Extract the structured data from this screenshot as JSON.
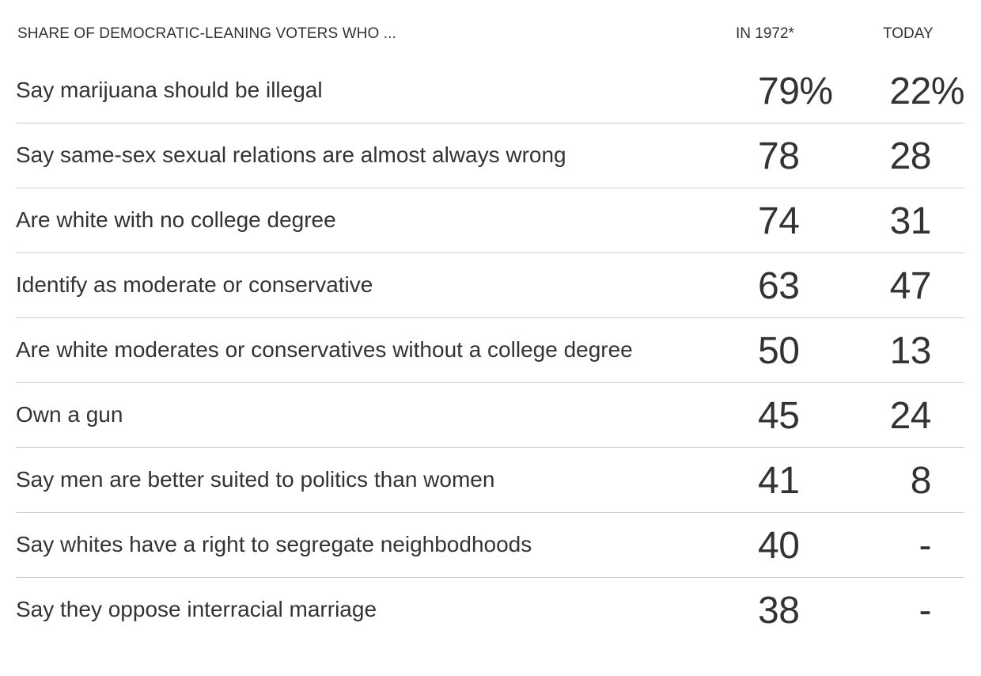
{
  "header": {
    "label": "SHARE OF DEMOCRATIC-LEANING VOTERS WHO ...",
    "col_1972": "IN 1972*",
    "col_today": "TODAY"
  },
  "rows": [
    {
      "label": "Say marijuana should be illegal",
      "v1972": "79%",
      "today": "22%"
    },
    {
      "label": "Say same-sex sexual relations are almost always wrong",
      "v1972": "78",
      "today": "28"
    },
    {
      "label": "Are white with no college degree",
      "v1972": "74",
      "today": "31"
    },
    {
      "label": "Identify as moderate or conservative",
      "v1972": "63",
      "today": "47"
    },
    {
      "label": "Are white moderates or conservatives without a college degree",
      "v1972": "50",
      "today": "13"
    },
    {
      "label": "Own a gun",
      "v1972": "45",
      "today": "24"
    },
    {
      "label": "Say men are better suited to politics than women",
      "v1972": "41",
      "today": "8"
    },
    {
      "label": "Say whites have a right to segregate neighbodhoods",
      "v1972": "40",
      "today": "-"
    },
    {
      "label": "Say they oppose interracial marriage",
      "v1972": "38",
      "today": "-"
    }
  ]
}
